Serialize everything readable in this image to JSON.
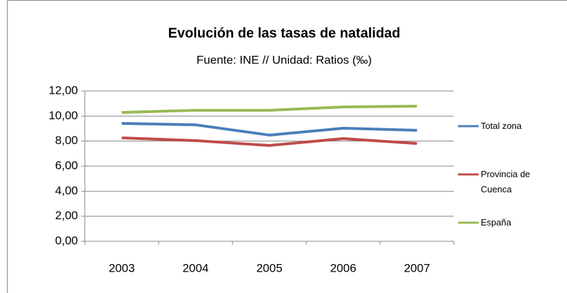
{
  "chart_data": {
    "type": "line",
    "title": "Evolución de las tasas de natalidad",
    "subtitle": "Fuente: INE // Unidad: Ratios (‰)",
    "categories": [
      "2003",
      "2004",
      "2005",
      "2006",
      "2007"
    ],
    "series": [
      {
        "name": "Total zona",
        "color": "#4a7ebb",
        "values": [
          9.41,
          9.3,
          8.48,
          9.03,
          8.86
        ]
      },
      {
        "name": "Provincia de Cuenca",
        "color": "#be4b48",
        "values": [
          8.26,
          8.04,
          7.65,
          8.2,
          7.81
        ]
      },
      {
        "name": "España",
        "color": "#98b954",
        "values": [
          10.29,
          10.46,
          10.46,
          10.73,
          10.79
        ]
      }
    ],
    "ylim": [
      0,
      12
    ],
    "yticks": [
      {
        "value": 0,
        "label": "0,00"
      },
      {
        "value": 2,
        "label": "2,00"
      },
      {
        "value": 4,
        "label": "4,00"
      },
      {
        "value": 6,
        "label": "6,00"
      },
      {
        "value": 8,
        "label": "8,00"
      },
      {
        "value": 10,
        "label": "10,00"
      },
      {
        "value": 12,
        "label": "12,00"
      }
    ],
    "grid": true,
    "legend": "right"
  }
}
